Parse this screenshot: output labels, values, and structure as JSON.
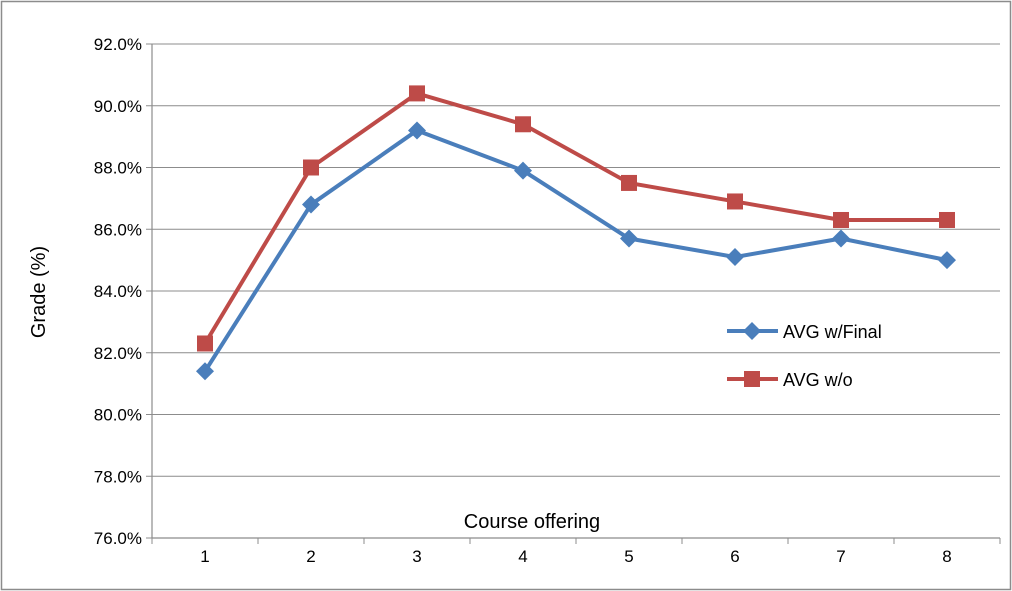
{
  "chart_data": {
    "type": "line",
    "title": "",
    "xlabel": "Course offering",
    "ylabel": "Grade (%)",
    "categories": [
      "1",
      "2",
      "3",
      "4",
      "5",
      "6",
      "7",
      "8"
    ],
    "ylim": [
      76.0,
      92.0
    ],
    "y_ticks": [
      76.0,
      78.0,
      80.0,
      82.0,
      84.0,
      86.0,
      88.0,
      90.0,
      92.0
    ],
    "y_tick_labels": [
      "76.0%",
      "78.0%",
      "80.0%",
      "82.0%",
      "84.0%",
      "86.0%",
      "88.0%",
      "90.0%",
      "92.0%"
    ],
    "grid": true,
    "legend_position": "right",
    "series": [
      {
        "name": "AVG w/Final",
        "color": "#4a7ebb",
        "marker": "diamond",
        "values": [
          81.4,
          86.8,
          89.2,
          87.9,
          85.7,
          85.1,
          85.7,
          85.0
        ]
      },
      {
        "name": "AVG w/o",
        "color": "#be4b48",
        "marker": "square",
        "values": [
          82.3,
          88.0,
          90.4,
          89.4,
          87.5,
          86.9,
          86.3,
          86.3
        ]
      }
    ]
  }
}
